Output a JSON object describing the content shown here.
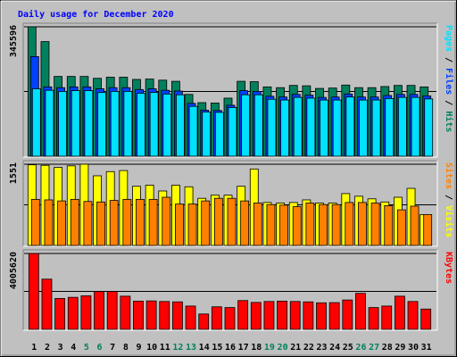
{
  "title": "Daily usage for December 2020",
  "colors": {
    "background": "#c0c0c0",
    "title": "#0000ff",
    "hits": "#00805c",
    "files": "#0040ff",
    "pages": "#00e0ff",
    "visits": "#ffff00",
    "sites": "#ff8000",
    "kbytes": "#ff0000",
    "weekday": "#000000",
    "weekend": "#00805c"
  },
  "chart_data": {
    "type": "bar",
    "x": [
      1,
      2,
      3,
      4,
      5,
      6,
      7,
      8,
      9,
      10,
      11,
      12,
      13,
      14,
      15,
      16,
      17,
      18,
      19,
      20,
      21,
      22,
      23,
      24,
      25,
      26,
      27,
      28,
      29,
      30,
      31
    ],
    "weekend_days": [
      5,
      6,
      12,
      13,
      19,
      20,
      26,
      27
    ],
    "panels": [
      {
        "id": "hits-files-pages",
        "ymax_label": "345596",
        "ymax": 345596,
        "legend": [
          {
            "text": "Pages",
            "key": "pages"
          },
          {
            "text": " / ",
            "key": "sep"
          },
          {
            "text": "Files",
            "key": "files"
          },
          {
            "text": " / ",
            "key": "sep"
          },
          {
            "text": "Hits",
            "key": "hits"
          }
        ],
        "series": [
          {
            "name": "Hits",
            "values": [
              345596,
              306000,
              213000,
              213000,
              213000,
              208000,
              211000,
              211000,
              205000,
              206000,
              203000,
              200000,
              165000,
              143000,
              142000,
              155000,
              200000,
              199000,
              185000,
              183000,
              189000,
              188000,
              181000,
              182000,
              190000,
              183000,
              183000,
              186000,
              189000,
              189000,
              185000
            ]
          },
          {
            "name": "Files",
            "values": [
              266000,
              185000,
              183000,
              185000,
              185000,
              180000,
              183000,
              183000,
              178000,
              180000,
              176000,
              174000,
              141000,
              123000,
              122000,
              136000,
              175000,
              173000,
              160000,
              158000,
              165000,
              163000,
              157000,
              158000,
              166000,
              158000,
              158000,
              162000,
              165000,
              165000,
              161000
            ]
          },
          {
            "name": "Pages",
            "values": [
              180000,
              176000,
              173000,
              175000,
              175000,
              170000,
              173000,
              173000,
              168000,
              170000,
              166000,
              164000,
              133000,
              118000,
              117000,
              130000,
              164000,
              164000,
              152000,
              150000,
              157000,
              155000,
              150000,
              150000,
              158000,
              150000,
              150000,
              154000,
              157000,
              157000,
              153000
            ]
          }
        ]
      },
      {
        "id": "visits-sites",
        "ymax_label": "1551",
        "ymax": 1551,
        "legend": [
          {
            "text": "Sites",
            "key": "sites"
          },
          {
            "text": " / ",
            "key": "sep"
          },
          {
            "text": "Visits",
            "key": "visits"
          }
        ],
        "series": [
          {
            "name": "Visits",
            "values": [
              1540,
              1530,
              1490,
              1520,
              1551,
              1330,
              1410,
              1430,
              1130,
              1150,
              1040,
              1150,
              1120,
              900,
              960,
              960,
              1130,
              1460,
              820,
              810,
              820,
              870,
              810,
              810,
              990,
              940,
              890,
              830,
              920,
              1090,
              590
            ]
          },
          {
            "name": "Sites",
            "values": [
              880,
              870,
              850,
              880,
              840,
              830,
              860,
              880,
              880,
              880,
              920,
              790,
              790,
              850,
              900,
              900,
              850,
              810,
              780,
              770,
              740,
              810,
              780,
              780,
              820,
              820,
              810,
              760,
              680,
              750,
              590
            ]
          }
        ]
      },
      {
        "id": "kbytes",
        "ymax_label": "4005620",
        "ymax": 4005620,
        "legend": [
          {
            "text": "KBytes",
            "key": "kbytes"
          }
        ],
        "series": [
          {
            "name": "KBytes",
            "values": [
              4005620,
              2650000,
              1630000,
              1690000,
              1770000,
              2000000,
              2000000,
              1750000,
              1490000,
              1500000,
              1470000,
              1450000,
              1230000,
              810000,
              1190000,
              1150000,
              1520000,
              1420000,
              1470000,
              1490000,
              1470000,
              1450000,
              1400000,
              1410000,
              1550000,
              1900000,
              1150000,
              1230000,
              1750000,
              1470000,
              1070000
            ]
          }
        ]
      }
    ]
  }
}
